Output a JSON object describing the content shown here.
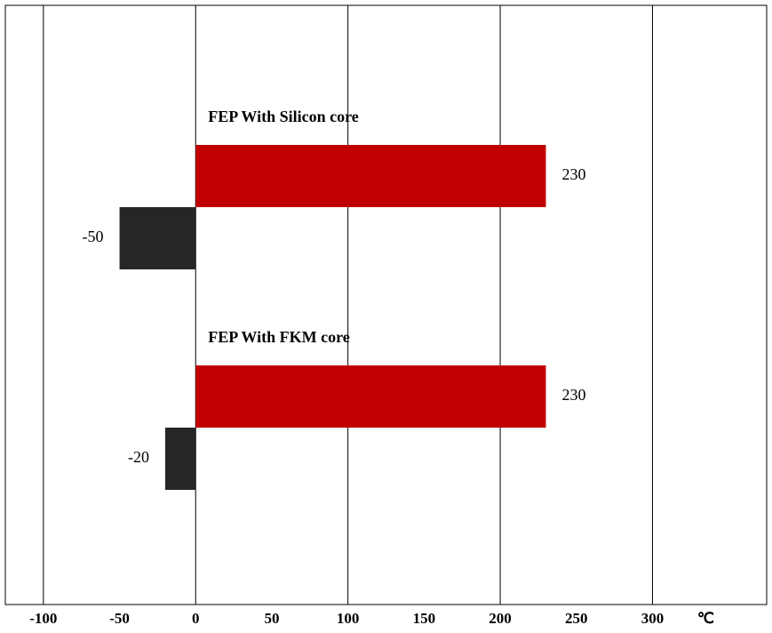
{
  "chart_data": {
    "type": "barh",
    "categories": [
      "FEP With Silicon core",
      "FEP With FKM core"
    ],
    "series": [
      {
        "color": "#c00000",
        "values": [
          230,
          230
        ]
      },
      {
        "color": "#262626",
        "values": [
          -50,
          -20
        ]
      }
    ],
    "xlim": [
      -125,
      375
    ],
    "xticks": [
      -100,
      -50,
      0,
      50,
      100,
      150,
      200,
      250,
      300
    ],
    "x_unit": "℃",
    "grid": true
  }
}
